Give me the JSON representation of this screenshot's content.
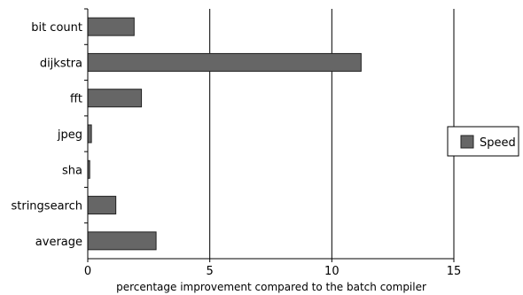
{
  "chart_data": {
    "type": "bar",
    "orientation": "horizontal",
    "categories": [
      "bit count",
      "dijkstra",
      "fft",
      "jpeg",
      "sha",
      "stringsearch",
      "average"
    ],
    "series": [
      {
        "name": "Speed",
        "values": [
          1.9,
          11.2,
          2.2,
          0.15,
          0.08,
          1.15,
          2.8
        ]
      }
    ],
    "xlabel": "percentage improvement compared to the batch compiler",
    "ylabel": "",
    "xlim": [
      0,
      15
    ],
    "xticks": [
      0,
      5,
      10,
      15
    ],
    "grid": "vertical",
    "legend_position": "right",
    "colors": {
      "bar_fill": "#666666",
      "bar_stroke": "#222222",
      "grid": "#000000"
    }
  }
}
